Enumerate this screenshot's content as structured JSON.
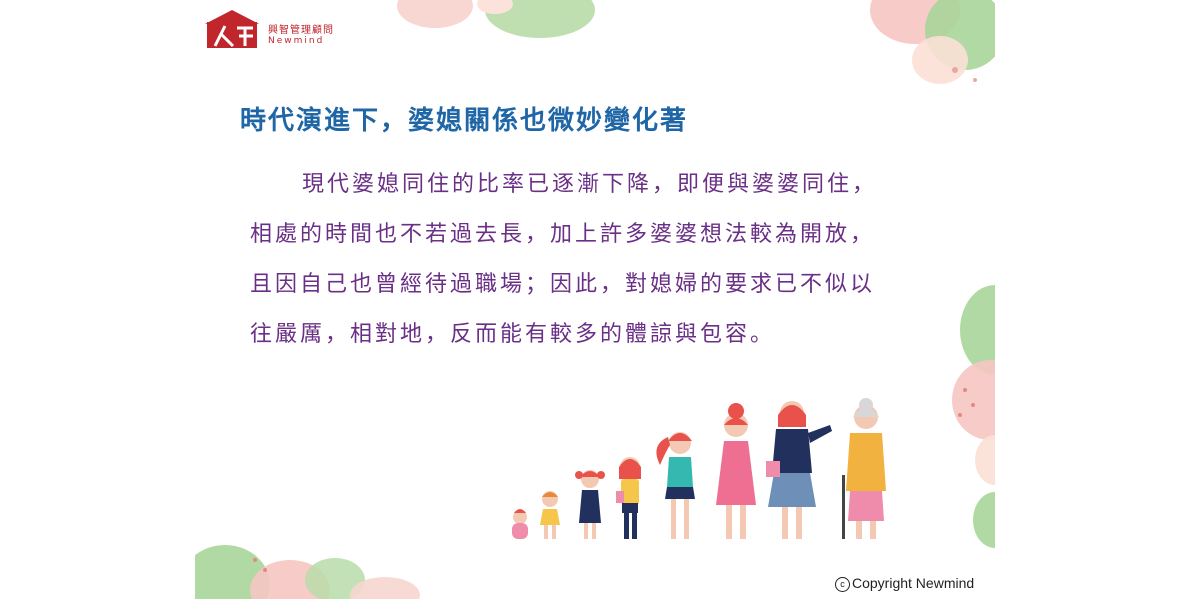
{
  "logo": {
    "name_cn": "興智管理顧問",
    "name_en": "Newmind"
  },
  "title": "時代演進下，婆媳關係也微妙變化著",
  "paragraph_lines": [
    "現代婆媳同住的比率已逐漸下降，即便與婆婆同住，",
    "相處的時間也不若過去長，加上許多婆婆想法較為開放，",
    "且因自己也曾經待過職場；因此，對媳婦的要求已不似以",
    "往嚴厲，相對地，反而能有較多的體諒與包容。"
  ],
  "copyright": {
    "symbol": "c",
    "text": "Copyright Newmind"
  },
  "colors": {
    "title": "#1f66a7",
    "body": "#6a2f86",
    "brand": "#c0262c",
    "green": "#a9d59a",
    "pink": "#f6c7c2"
  },
  "illustration": "women-life-stages-illustration"
}
